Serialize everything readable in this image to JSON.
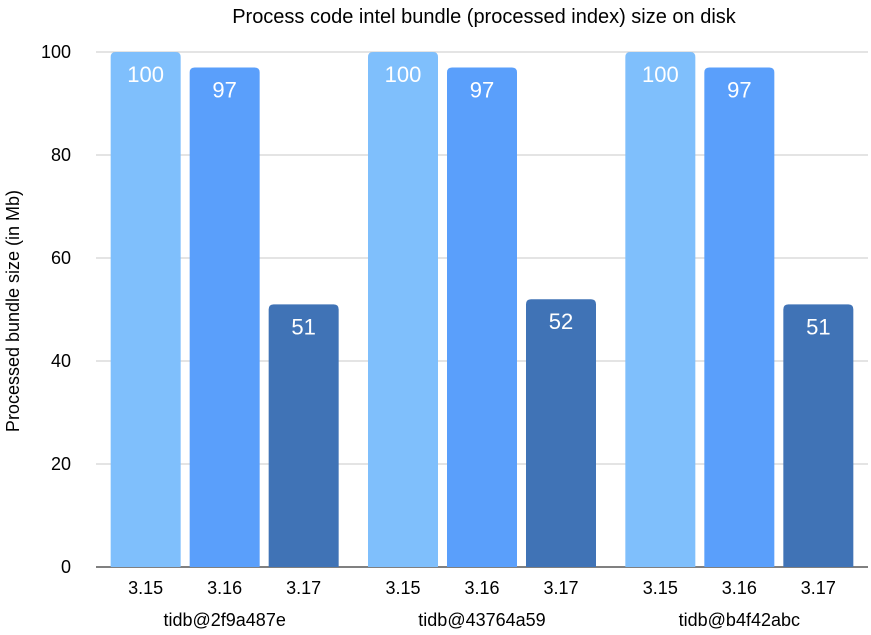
{
  "chart_data": {
    "type": "bar",
    "title": "Process code intel bundle (processed index) size on disk",
    "ylabel": "Processed bundle size (in Mb)",
    "xlabel": "",
    "ylim": [
      0,
      100
    ],
    "yticks": [
      0,
      20,
      40,
      60,
      80,
      100
    ],
    "grid": true,
    "groups": [
      {
        "name": "tidb@2f9a487e",
        "bars": [
          {
            "category": "3.15",
            "value": 100
          },
          {
            "category": "3.16",
            "value": 97
          },
          {
            "category": "3.17",
            "value": 51
          }
        ]
      },
      {
        "name": "tidb@43764a59",
        "bars": [
          {
            "category": "3.15",
            "value": 100
          },
          {
            "category": "3.16",
            "value": 97
          },
          {
            "category": "3.17",
            "value": 52
          }
        ]
      },
      {
        "name": "tidb@b4f42abc",
        "bars": [
          {
            "category": "3.15",
            "value": 100
          },
          {
            "category": "3.16",
            "value": 97
          },
          {
            "category": "3.17",
            "value": 51
          }
        ]
      }
    ],
    "colors": {
      "3.15": "#7fbffc",
      "3.16": "#5a9ffb",
      "3.17": "#4073b6"
    }
  }
}
